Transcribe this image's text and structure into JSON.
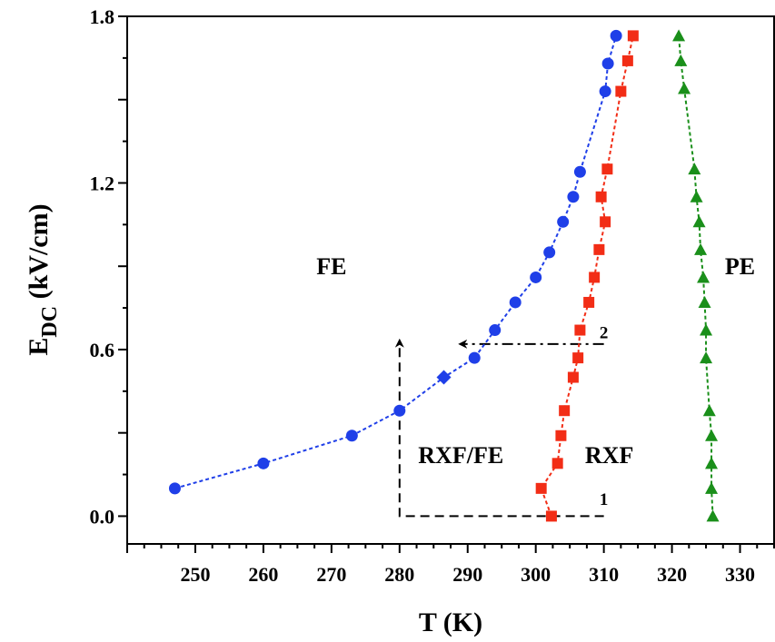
{
  "chart_data": {
    "type": "scatter",
    "xlabel": "T (K)",
    "ylabel_main": "E",
    "ylabel_sub": "DC",
    "ylabel_rest": " (kV/cm)",
    "xlim": [
      240,
      335
    ],
    "ylim": [
      -0.1,
      1.8
    ],
    "xticks": [
      250,
      260,
      270,
      280,
      290,
      300,
      310,
      320,
      330
    ],
    "yticks": [
      0.0,
      0.6,
      1.2,
      1.8
    ],
    "yticklabels": [
      "0.0",
      "0.6",
      "1.2",
      "1.8"
    ],
    "grid": false,
    "series": [
      {
        "marker": "circle",
        "color": "#1f3fe8",
        "points": [
          [
            247,
            0.1
          ],
          [
            260,
            0.19
          ],
          [
            273,
            0.29
          ],
          [
            280,
            0.38
          ],
          [
            286.5,
            0.5
          ],
          [
            291,
            0.57
          ],
          [
            294,
            0.67
          ],
          [
            297,
            0.77
          ],
          [
            300,
            0.86
          ],
          [
            302,
            0.95
          ],
          [
            304,
            1.06
          ],
          [
            305.5,
            1.15
          ],
          [
            306.5,
            1.24
          ],
          [
            310.2,
            1.53
          ],
          [
            310.6,
            1.63
          ],
          [
            311.8,
            1.73
          ]
        ],
        "diamond_indices": [
          4
        ]
      },
      {
        "marker": "square",
        "color": "#f22d16",
        "points": [
          [
            302.3,
            0.0
          ],
          [
            300.8,
            0.1
          ],
          [
            303.2,
            0.19
          ],
          [
            303.7,
            0.29
          ],
          [
            304.2,
            0.38
          ],
          [
            305.5,
            0.5
          ],
          [
            306.2,
            0.57
          ],
          [
            306.5,
            0.67
          ],
          [
            307.8,
            0.77
          ],
          [
            308.6,
            0.86
          ],
          [
            309.3,
            0.96
          ],
          [
            310.2,
            1.06
          ],
          [
            309.6,
            1.15
          ],
          [
            310.5,
            1.25
          ],
          [
            312.5,
            1.53
          ],
          [
            313.5,
            1.64
          ],
          [
            314.3,
            1.73
          ]
        ]
      },
      {
        "marker": "triangle",
        "color": "#1a8f1a",
        "points": [
          [
            326,
            0.0
          ],
          [
            325.8,
            0.1
          ],
          [
            325.8,
            0.19
          ],
          [
            325.8,
            0.29
          ],
          [
            325.5,
            0.38
          ],
          [
            325,
            0.57
          ],
          [
            325,
            0.67
          ],
          [
            324.8,
            0.77
          ],
          [
            324.6,
            0.86
          ],
          [
            324.2,
            0.96
          ],
          [
            324,
            1.06
          ],
          [
            323.6,
            1.15
          ],
          [
            323.3,
            1.25
          ],
          [
            321.8,
            1.54
          ],
          [
            321.3,
            1.64
          ],
          [
            321,
            1.73
          ]
        ]
      }
    ],
    "region_labels": [
      {
        "text": "FE",
        "x": 270,
        "y": 0.9
      },
      {
        "text": "PE",
        "x": 330,
        "y": 0.9
      },
      {
        "text": "RXF/FE",
        "x": 289,
        "y": 0.22
      },
      {
        "text": "RXF",
        "x": 310.8,
        "y": 0.22
      }
    ],
    "path_labels": [
      {
        "text": "1",
        "x": 310,
        "y": 0.06
      },
      {
        "text": "2",
        "x": 310,
        "y": 0.66
      }
    ],
    "paths": [
      {
        "style": "dashed",
        "points": [
          [
            310,
            0.0
          ],
          [
            280,
            0.0
          ],
          [
            280,
            0.63
          ]
        ],
        "arrow": "end"
      },
      {
        "style": "dashdot",
        "points": [
          [
            310,
            0.62
          ],
          [
            289,
            0.62
          ]
        ],
        "arrow": "end"
      }
    ]
  }
}
